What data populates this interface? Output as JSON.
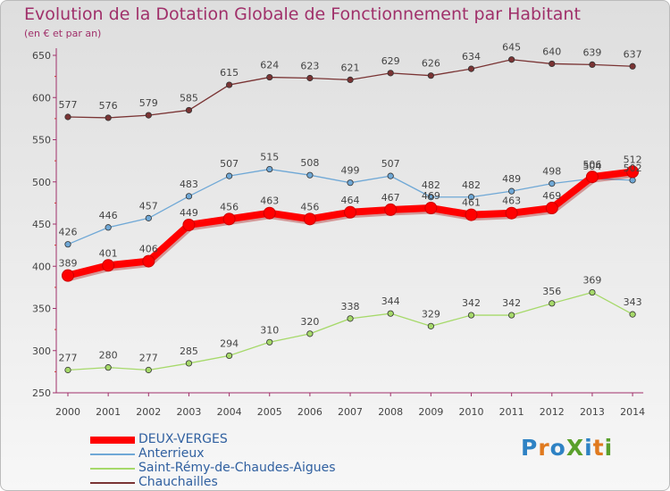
{
  "header": {
    "title": "Evolution de la Dotation Globale de Fonctionnement par Habitant",
    "subtitle": "(en € et par an)"
  },
  "logo": {
    "text": "ProXiti",
    "colors": [
      "#2e82c4",
      "#e07a1f",
      "#2e82c4",
      "#5aa02c",
      "#2e82c4",
      "#e07a1f",
      "#5aa02c"
    ]
  },
  "chart_data": {
    "type": "line",
    "categories": [
      "2000",
      "2001",
      "2002",
      "2003",
      "2004",
      "2005",
      "2006",
      "2007",
      "2008",
      "2009",
      "2010",
      "2011",
      "2012",
      "2013",
      "2014"
    ],
    "ylim": [
      250,
      650
    ],
    "yticks": [
      250,
      300,
      350,
      400,
      450,
      500,
      550,
      600,
      650
    ],
    "grid": false,
    "legend_position": "bottom-left",
    "series": [
      {
        "name": "DEUX-VERGES",
        "color": "#ff0000",
        "emphasis": true,
        "values": [
          389,
          401,
          406,
          449,
          456,
          463,
          456,
          464,
          467,
          469,
          461,
          463,
          469,
          506,
          512
        ]
      },
      {
        "name": "Anterrieux",
        "color": "#6fa8d6",
        "values": [
          426,
          446,
          457,
          483,
          507,
          515,
          508,
          499,
          507,
          482,
          482,
          489,
          498,
          504,
          502
        ]
      },
      {
        "name": "Saint-Rémy-de-Chaudes-Aigues",
        "color": "#a6d96a",
        "values": [
          277,
          280,
          277,
          285,
          294,
          310,
          320,
          338,
          344,
          329,
          342,
          342,
          356,
          369,
          343
        ]
      },
      {
        "name": "Chauchailles",
        "color": "#7a3434",
        "values": [
          577,
          576,
          579,
          585,
          615,
          624,
          623,
          621,
          629,
          626,
          634,
          645,
          640,
          639,
          637
        ]
      }
    ]
  }
}
